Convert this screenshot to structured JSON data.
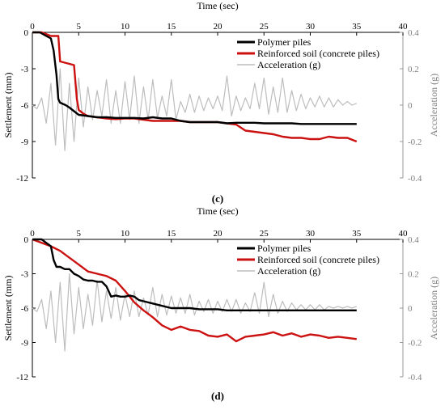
{
  "chart_data": [
    {
      "panel_label": "(c)",
      "type": "line",
      "xlabel": "Time (sec)",
      "ylabel": "Settlement (mm)",
      "y2label": "Acceleration (g)",
      "xlim": [
        0,
        40
      ],
      "ylim": [
        -12,
        0
      ],
      "y2lim": [
        -0.4,
        0.4
      ],
      "x_ticks": [
        "0",
        "5",
        "10",
        "15",
        "20",
        "25",
        "30",
        "35",
        "40"
      ],
      "y_ticks": [
        "0",
        "-3",
        "-6",
        "-9",
        "-12"
      ],
      "y2_ticks": [
        "0.4",
        "0.2",
        "0",
        "-0.2",
        "-0.4"
      ],
      "x_axis_position": "top",
      "legend_position": "top-right",
      "series": [
        {
          "name": "Polymer piles",
          "color": "#000000",
          "axis": "left",
          "x": [
            0,
            0.8,
            1.5,
            2.0,
            2.3,
            2.6,
            2.8,
            3.0,
            3.3,
            3.6,
            4.0,
            4.5,
            5.0,
            6,
            7,
            8,
            9,
            10,
            11,
            12,
            13,
            14,
            15,
            16,
            17,
            18,
            19,
            20,
            21,
            22,
            23,
            24,
            25,
            26,
            27,
            28,
            29,
            30,
            31,
            32,
            33,
            34,
            35
          ],
          "y": [
            0,
            0,
            -0.3,
            -0.5,
            -1.5,
            -3.5,
            -5.5,
            -5.8,
            -5.9,
            -6.0,
            -6.2,
            -6.5,
            -6.8,
            -6.9,
            -7.0,
            -7.0,
            -7.05,
            -7.05,
            -7.05,
            -7.1,
            -7.0,
            -7.1,
            -7.1,
            -7.3,
            -7.4,
            -7.4,
            -7.4,
            -7.4,
            -7.5,
            -7.45,
            -7.45,
            -7.45,
            -7.5,
            -7.5,
            -7.5,
            -7.5,
            -7.55,
            -7.55,
            -7.55,
            -7.55,
            -7.55,
            -7.55,
            -7.55
          ]
        },
        {
          "name": "Reinforced soil (concrete piles)",
          "color": "#cc1111",
          "axis": "left",
          "x": [
            0,
            1.0,
            2.0,
            2.8,
            3.0,
            3.5,
            4.0,
            4.5,
            4.8,
            5.0,
            5.5,
            6,
            7,
            8,
            9,
            10,
            11,
            12,
            13,
            14,
            15,
            16,
            17,
            18,
            19,
            20,
            21,
            22,
            23,
            24,
            25,
            26,
            27,
            28,
            29,
            30,
            31,
            32,
            33,
            34,
            35
          ],
          "y": [
            0,
            0,
            -0.3,
            -0.3,
            -2.4,
            -2.5,
            -2.6,
            -2.7,
            -5.5,
            -6.4,
            -6.7,
            -6.9,
            -7.0,
            -7.1,
            -7.15,
            -7.1,
            -7.1,
            -7.2,
            -7.3,
            -7.3,
            -7.3,
            -7.3,
            -7.4,
            -7.4,
            -7.4,
            -7.4,
            -7.5,
            -7.6,
            -8.1,
            -8.2,
            -8.3,
            -8.4,
            -8.6,
            -8.7,
            -8.7,
            -8.8,
            -8.8,
            -8.6,
            -8.7,
            -8.7,
            -9.0
          ]
        },
        {
          "name": "Acceleration (g)",
          "color": "#bdbdbd",
          "axis": "right",
          "x": [
            0,
            0.5,
            1.0,
            1.5,
            2.0,
            2.5,
            3.0,
            3.5,
            4.0,
            4.5,
            5.0,
            5.5,
            6.0,
            6.5,
            7.0,
            7.5,
            8.0,
            8.5,
            9.0,
            9.5,
            10.0,
            10.5,
            11.0,
            11.5,
            12.0,
            12.5,
            13.0,
            13.5,
            14.0,
            14.5,
            15.0,
            15.5,
            16.0,
            16.5,
            17.0,
            17.5,
            18.0,
            18.5,
            19.0,
            19.5,
            20.0,
            20.5,
            21.0,
            21.5,
            22.0,
            22.5,
            23.0,
            23.5,
            24.0,
            24.5,
            25.0,
            25.5,
            26.0,
            26.5,
            27.0,
            27.5,
            28.0,
            28.5,
            29.0,
            29.5,
            30.0,
            30.5,
            31.0,
            31.5,
            32.0,
            32.5,
            33.0,
            33.5,
            34.0,
            34.5,
            35.0
          ],
          "y": [
            0.0,
            -0.02,
            0.04,
            -0.1,
            0.12,
            -0.22,
            0.2,
            -0.25,
            0.12,
            -0.2,
            0.15,
            -0.12,
            0.1,
            -0.08,
            0.08,
            -0.06,
            0.14,
            -0.1,
            0.08,
            -0.1,
            0.13,
            -0.08,
            0.16,
            -0.1,
            0.1,
            -0.08,
            0.14,
            -0.07,
            0.05,
            -0.06,
            0.14,
            -0.08,
            0.02,
            -0.04,
            0.06,
            -0.04,
            0.05,
            -0.03,
            0.04,
            -0.02,
            0.05,
            -0.03,
            0.16,
            -0.06,
            0.05,
            -0.03,
            0.04,
            -0.02,
            0.12,
            -0.02,
            0.15,
            -0.05,
            0.1,
            -0.04,
            0.15,
            -0.04,
            0.08,
            -0.03,
            0.06,
            -0.02,
            0.04,
            -0.01,
            0.05,
            -0.01,
            0.04,
            -0.01,
            0.03,
            0.0,
            0.02,
            0.0,
            0.01
          ]
        }
      ]
    },
    {
      "panel_label": "(d)",
      "type": "line",
      "xlabel": "Time (sec)",
      "ylabel": "Settlement (mm)",
      "y2label": "Acceleration (g)",
      "xlim": [
        0,
        40
      ],
      "ylim": [
        -12,
        0
      ],
      "y2lim": [
        -0.4,
        0.4
      ],
      "x_ticks": [
        "0",
        "5",
        "10",
        "15",
        "20",
        "25",
        "30",
        "35",
        "40"
      ],
      "y_ticks": [
        "0",
        "-3",
        "-6",
        "-9",
        "-12"
      ],
      "y2_ticks": [
        "0.4",
        "0.2",
        "0",
        "-0.2",
        "-0.4"
      ],
      "x_axis_position": "top",
      "legend_position": "top-right",
      "series": [
        {
          "name": "Polymer piles",
          "color": "#000000",
          "axis": "left",
          "x": [
            0,
            1.0,
            1.5,
            2.0,
            2.3,
            2.6,
            3.0,
            3.5,
            4.0,
            4.5,
            5.0,
            5.5,
            6.0,
            6.5,
            7.0,
            7.5,
            8.0,
            8.5,
            9.0,
            9.5,
            10.0,
            10.5,
            11.0,
            11.5,
            12.0,
            13,
            14,
            15,
            16,
            17,
            18,
            19,
            20,
            21,
            22,
            23,
            24,
            25,
            26,
            27,
            28,
            29,
            30,
            31,
            32,
            33,
            34,
            35
          ],
          "y": [
            0,
            0,
            -0.3,
            -0.6,
            -1.8,
            -2.4,
            -2.4,
            -2.6,
            -2.6,
            -3.0,
            -3.2,
            -3.5,
            -3.6,
            -3.6,
            -3.7,
            -3.7,
            -4.1,
            -5.0,
            -4.9,
            -5.0,
            -5.0,
            -4.9,
            -5.0,
            -5.3,
            -5.4,
            -5.6,
            -5.8,
            -6.0,
            -6.0,
            -6.0,
            -6.1,
            -6.1,
            -6.1,
            -6.2,
            -6.2,
            -6.2,
            -6.2,
            -6.2,
            -6.2,
            -6.2,
            -6.2,
            -6.2,
            -6.2,
            -6.2,
            -6.2,
            -6.2,
            -6.2,
            -6.2
          ]
        },
        {
          "name": "Reinforced soil (concrete piles)",
          "color": "#cc1111",
          "axis": "left",
          "x": [
            0,
            1.0,
            2.0,
            3.0,
            4.0,
            5.0,
            6.0,
            7.0,
            8.0,
            9.0,
            10.0,
            11.0,
            12.0,
            13.0,
            14.0,
            15.0,
            16.0,
            17.0,
            18.0,
            19.0,
            20.0,
            21.0,
            22.0,
            23.0,
            24.0,
            25.0,
            26.0,
            27.0,
            28.0,
            29.0,
            30.0,
            31.0,
            32.0,
            33.0,
            34.0,
            35.0
          ],
          "y": [
            0,
            -0.3,
            -0.6,
            -1.0,
            -1.6,
            -2.2,
            -2.8,
            -3.0,
            -3.2,
            -3.6,
            -4.5,
            -5.5,
            -6.2,
            -6.8,
            -7.5,
            -7.9,
            -7.6,
            -7.9,
            -8.0,
            -8.4,
            -8.5,
            -8.3,
            -8.9,
            -8.5,
            -8.4,
            -8.3,
            -8.1,
            -8.4,
            -8.2,
            -8.5,
            -8.3,
            -8.4,
            -8.6,
            -8.5,
            -8.6,
            -8.7
          ]
        },
        {
          "name": "Acceleration (g)",
          "color": "#bdbdbd",
          "axis": "right",
          "x": [
            0,
            0.5,
            1.0,
            1.5,
            2.0,
            2.5,
            3.0,
            3.5,
            4.0,
            4.5,
            5.0,
            5.5,
            6.0,
            6.5,
            7.0,
            7.5,
            8.0,
            8.5,
            9.0,
            9.5,
            10.0,
            10.5,
            11.0,
            11.5,
            12.0,
            12.5,
            13.0,
            13.5,
            14.0,
            14.5,
            15.0,
            15.5,
            16.0,
            16.5,
            17.0,
            17.5,
            18.0,
            18.5,
            19.0,
            19.5,
            20.0,
            20.5,
            21.0,
            21.5,
            22.0,
            22.5,
            23.0,
            23.5,
            24.0,
            24.5,
            25.0,
            25.5,
            26.0,
            26.5,
            27.0,
            27.5,
            28.0,
            28.5,
            29.0,
            29.5,
            30.0,
            30.5,
            31.0,
            31.5,
            32.0,
            32.5,
            33.0,
            33.5,
            34.0,
            34.5,
            35.0
          ],
          "y": [
            0.0,
            -0.02,
            0.05,
            -0.12,
            0.1,
            -0.2,
            0.15,
            -0.25,
            0.2,
            -0.15,
            0.12,
            -0.12,
            0.08,
            -0.1,
            0.16,
            -0.08,
            0.1,
            -0.06,
            0.12,
            -0.07,
            0.08,
            -0.05,
            0.1,
            -0.05,
            0.06,
            -0.04,
            0.12,
            -0.05,
            0.08,
            -0.04,
            0.07,
            -0.03,
            0.06,
            -0.03,
            0.08,
            -0.04,
            0.04,
            -0.02,
            0.05,
            -0.03,
            0.04,
            -0.02,
            0.05,
            -0.02,
            0.05,
            -0.03,
            0.03,
            -0.02,
            0.09,
            -0.03,
            0.15,
            -0.05,
            0.08,
            -0.03,
            0.04,
            -0.02,
            0.03,
            -0.01,
            0.02,
            -0.01,
            0.02,
            -0.01,
            0.02,
            -0.01,
            0.01,
            0.0,
            0.01,
            0.0,
            0.01,
            0.0,
            0.01
          ]
        }
      ]
    }
  ]
}
